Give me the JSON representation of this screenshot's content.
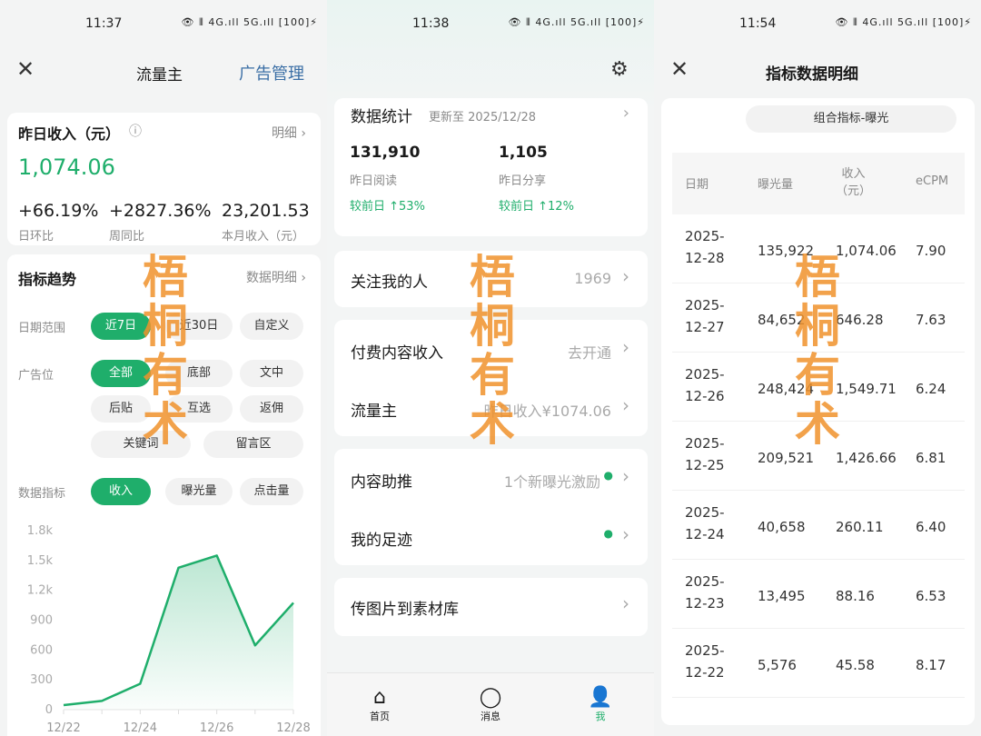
{
  "watermark": "梧桐有术",
  "status_icons": "👁 ⦀ 4G.ıll 5G.ıll [100]⚡",
  "panel1": {
    "time": "11:37",
    "title": "流量主",
    "ad_manage": "广告管理",
    "income": {
      "label": "昨日收入（元）",
      "detail": "明细",
      "value": "1,074.06",
      "stats": [
        {
          "value": "+66.19%",
          "label": "日环比"
        },
        {
          "value": "+2827.36%",
          "label": "周同比"
        },
        {
          "value": "23,201.53",
          "label": "本月收入（元）"
        }
      ]
    },
    "trend": {
      "title": "指标趋势",
      "detail": "数据明细",
      "date_label": "日期范围",
      "dates": [
        "近7日",
        "近30日",
        "自定义"
      ],
      "ad_label": "广告位",
      "ads": [
        "全部",
        "底部",
        "文中",
        "后贴",
        "互选",
        "返佣",
        "关键词",
        "留言区"
      ],
      "metric_label": "数据指标",
      "metrics": [
        "收入",
        "曝光量",
        "点击量"
      ]
    }
  },
  "chart_data": {
    "type": "area",
    "categories": [
      "12/22",
      "12/23",
      "12/24",
      "12/25",
      "12/26",
      "12/27",
      "12/28"
    ],
    "x_tick_labels": [
      "12/22",
      "12/24",
      "12/26",
      "12/28"
    ],
    "values": [
      45.58,
      88.16,
      260.11,
      1426.66,
      1549.71,
      646.28,
      1074.06
    ],
    "y_ticks": [
      "0",
      "300",
      "600",
      "900",
      "1.2k",
      "1.5k",
      "1.8k"
    ],
    "ylim": [
      0,
      1800
    ],
    "color": "#1fae6b"
  },
  "panel2": {
    "time": "11:38",
    "stats": {
      "title": "数据统计",
      "updated": "更新至 2025/12/28",
      "items": [
        {
          "value": "131,910",
          "label": "昨日阅读",
          "change": "较前日 ↑53%"
        },
        {
          "value": "1,105",
          "label": "昨日分享",
          "change": "较前日 ↑12%"
        }
      ]
    },
    "rows": [
      {
        "label": "关注我的人",
        "value": "1969"
      },
      {
        "label": "付费内容收入",
        "value": "去开通"
      },
      {
        "label": "流量主",
        "value": "昨日收入¥1074.06"
      },
      {
        "label": "内容助推",
        "value": "1个新曝光激励"
      },
      {
        "label": "我的足迹",
        "value": ""
      },
      {
        "label": "传图片到素材库",
        "value": ""
      }
    ],
    "nav": [
      {
        "label": "首页"
      },
      {
        "label": "消息"
      },
      {
        "label": "我"
      }
    ]
  },
  "panel3": {
    "time": "11:54",
    "title": "指标数据明细",
    "filter": "组合指标-曝光",
    "headers": [
      "日期",
      "曝光量",
      "收入\n（元）",
      "eCPM"
    ],
    "rows": [
      [
        "2025-\n12-28",
        "135,922",
        "1,074.06",
        "7.90"
      ],
      [
        "2025-\n12-27",
        "84,652",
        "646.28",
        "7.63"
      ],
      [
        "2025-\n12-26",
        "248,424",
        "1,549.71",
        "6.24"
      ],
      [
        "2025-\n12-25",
        "209,521",
        "1,426.66",
        "6.81"
      ],
      [
        "2025-\n12-24",
        "40,658",
        "260.11",
        "6.40"
      ],
      [
        "2025-\n12-23",
        "13,495",
        "88.16",
        "6.53"
      ],
      [
        "2025-\n12-22",
        "5,576",
        "45.58",
        "8.17"
      ]
    ]
  }
}
